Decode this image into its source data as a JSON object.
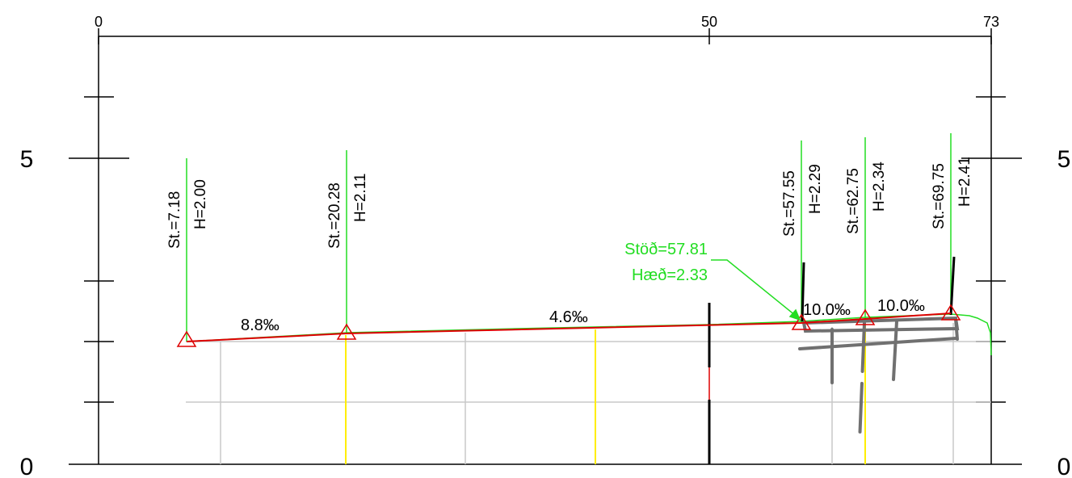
{
  "x_axis": {
    "ticks": [
      "0",
      "50",
      "73"
    ]
  },
  "y_axis": {
    "left_label_5": "5",
    "left_label_0": "0",
    "right_label_5": "5",
    "right_label_0": "0"
  },
  "stations": [
    {
      "st": "St.=7.18",
      "h": "H=2.00"
    },
    {
      "st": "St.=20.28",
      "h": "H=2.11"
    },
    {
      "st": "St.=57.55",
      "h": "H=2.29"
    },
    {
      "st": "St.=62.75",
      "h": "H=2.34"
    },
    {
      "st": "St.=69.75",
      "h": "H=2.41"
    }
  ],
  "grades": [
    "8.8‰",
    "4.6‰",
    "10.0‰",
    "10.0‰"
  ],
  "callout": {
    "stod": "Stöð=57.81",
    "haed": "Hæð=2.33"
  },
  "colors": {
    "frame": "#000000",
    "design_line": "#dd0000",
    "terrain": "#22dd22",
    "grid": "#c8c8c8",
    "marker": "#ffee00",
    "structure": "#707070"
  }
}
